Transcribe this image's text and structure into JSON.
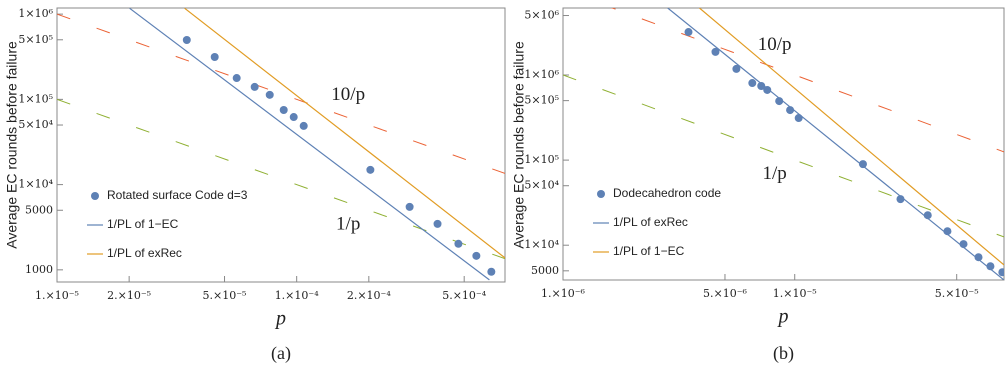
{
  "chart_data": [
    {
      "type": "scatter",
      "x_label": "p",
      "y_label": "Average EC rounds before failure",
      "caption": "(a)",
      "xscale": "log",
      "yscale": "log",
      "xlim": [
        1e-05,
        0.00074
      ],
      "ylim": [
        720,
        1180000
      ],
      "xticks": [
        {
          "value": 1e-05,
          "label": "1.×10⁻⁵"
        },
        {
          "value": 2e-05,
          "label": "2.×10⁻⁵"
        },
        {
          "value": 5e-05,
          "label": "5.×10⁻⁵"
        },
        {
          "value": 0.0001,
          "label": "1.×10⁻⁴"
        },
        {
          "value": 0.0002,
          "label": "2.×10⁻⁴"
        },
        {
          "value": 0.0005,
          "label": "5.×10⁻⁴"
        }
      ],
      "yticks": [
        1000,
        5000,
        {
          "value": 10000,
          "label": "1×10⁴"
        },
        {
          "value": 50000,
          "label": "5×10⁴"
        },
        {
          "value": 100000,
          "label": "1×10⁵"
        },
        {
          "value": 500000,
          "label": "5×10⁵"
        },
        {
          "value": 1000000,
          "label": "1×10⁶"
        }
      ],
      "legend": "bottom-left",
      "series": [
        {
          "name": "Rotated surface Code d=3",
          "type": "scatter",
          "color": "#5e81b5",
          "x": [
            3.48e-05,
            4.55e-05,
            5.62e-05,
            6.68e-05,
            7.72e-05,
            8.83e-05,
            9.72e-05,
            0.000107,
            0.000203,
            0.000296,
            0.000387,
            0.000473,
            0.000562,
            0.000649
          ],
          "values": [
            497000,
            314000,
            178000,
            140000,
            113000,
            75000,
            62000,
            48800,
            14900,
            5480,
            3460,
            2020,
            1460,
            950
          ]
        },
        {
          "name": "1/PL of 1−EC",
          "type": "line",
          "color": "#5e81b5",
          "x": [
            2.01e-05,
            0.000637
          ],
          "values": [
            1170000,
            763
          ]
        },
        {
          "name": "1/PL of exRec",
          "type": "line",
          "color": "#e19c24",
          "x": [
            3.41e-05,
            0.00074
          ],
          "values": [
            1170000,
            1380
          ]
        }
      ],
      "reference_lines": [
        {
          "label": "10/p",
          "color": "#eb6235",
          "x": [
            1e-05,
            0.00074
          ],
          "values": [
            1000000,
            13514
          ]
        },
        {
          "label": "1/p",
          "color": "#8fb032",
          "x": [
            1e-05,
            0.00074
          ],
          "values": [
            100000,
            1351
          ]
        }
      ]
    },
    {
      "type": "scatter",
      "x_label": "p",
      "y_label": "Average EC rounds before failure",
      "caption": "(b)",
      "xscale": "log",
      "yscale": "log",
      "xlim": [
        1e-06,
        8e-05
      ],
      "ylim": [
        3900,
        6130000
      ],
      "xticks": [
        {
          "value": 1e-06,
          "label": "1.×10⁻⁶"
        },
        {
          "value": 5e-06,
          "label": "5.×10⁻⁶"
        },
        {
          "value": 1e-05,
          "label": "1.×10⁻⁵"
        },
        {
          "value": 5e-05,
          "label": "5.×10⁻⁵"
        }
      ],
      "yticks": [
        5000,
        {
          "value": 10000,
          "label": "1×10⁴"
        },
        {
          "value": 50000,
          "label": "5×10⁴"
        },
        {
          "value": 100000,
          "label": "1×10⁵"
        },
        {
          "value": 500000,
          "label": "5×10⁵"
        },
        {
          "value": 1000000,
          "label": "1×10⁶"
        },
        {
          "value": 5000000,
          "label": "5×10⁶"
        }
      ],
      "legend": "bottom-left",
      "series": [
        {
          "name": "Dodecahedron code",
          "type": "scatter",
          "color": "#5e81b5",
          "x": [
            3.48e-06,
            4.55e-06,
            5.6e-06,
            6.56e-06,
            7.17e-06,
            7.61e-06,
            8.57e-06,
            9.55e-06,
            1.04e-05,
            1.97e-05,
            2.86e-05,
            3.75e-05,
            4.56e-05,
            5.35e-05,
            6.21e-05,
            6.99e-05,
            7.87e-05
          ],
          "values": [
            3200000,
            1870000,
            1180000,
            805000,
            743000,
            667000,
            494000,
            387000,
            312000,
            89700,
            34800,
            22500,
            14600,
            10300,
            7230,
            5660,
            4810
          ]
        },
        {
          "name": "1/PL of exRec",
          "type": "line",
          "color": "#5e81b5",
          "x": [
            2.83e-06,
            8e-05
          ],
          "values": [
            6130000,
            3900
          ]
        },
        {
          "name": "1/PL of 1−EC",
          "type": "line",
          "color": "#e19c24",
          "x": [
            3.88e-06,
            8e-05
          ],
          "values": [
            6130000,
            5860
          ]
        }
      ],
      "reference_lines": [
        {
          "label": "10/p",
          "color": "#eb6235",
          "x": [
            1e-06,
            8e-05
          ],
          "values": [
            10000000,
            125000
          ]
        },
        {
          "label": "1/p",
          "color": "#8fb032",
          "x": [
            1e-06,
            8e-05
          ],
          "values": [
            1000000,
            12500
          ]
        }
      ]
    }
  ]
}
